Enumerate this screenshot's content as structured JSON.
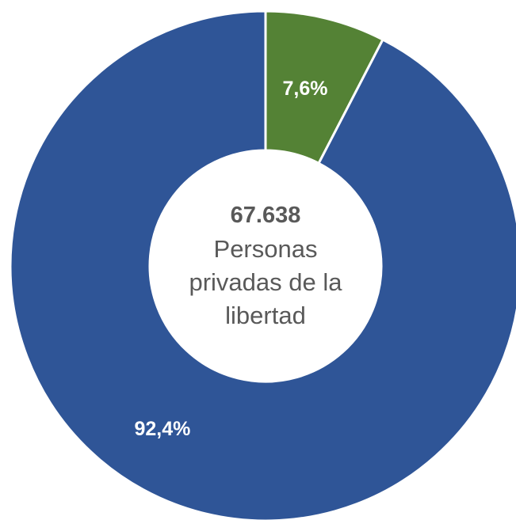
{
  "chart_data": {
    "type": "pie",
    "variant": "donut",
    "categories": [
      "",
      ""
    ],
    "values": [
      7.6,
      92.4
    ],
    "data_labels": [
      "7,6%",
      "92,4%"
    ],
    "colors": [
      "#548235",
      "#2F5597"
    ],
    "start": "top, clockwise",
    "center": {
      "total": "67.638",
      "lines": [
        "Personas",
        "privadas de la",
        "libertad"
      ]
    },
    "title": "",
    "legend": "none"
  }
}
